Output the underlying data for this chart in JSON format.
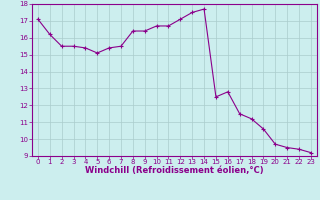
{
  "x": [
    0,
    1,
    2,
    3,
    4,
    5,
    6,
    7,
    8,
    9,
    10,
    11,
    12,
    13,
    14,
    15,
    16,
    17,
    18,
    19,
    20,
    21,
    22,
    23
  ],
  "y": [
    17.1,
    16.2,
    15.5,
    15.5,
    15.4,
    15.1,
    15.4,
    15.5,
    16.4,
    16.4,
    16.7,
    16.7,
    17.1,
    17.5,
    17.7,
    12.5,
    12.8,
    11.5,
    11.2,
    10.6,
    9.7,
    9.5,
    9.4,
    9.2
  ],
  "line_color": "#8B008B",
  "marker": "+",
  "bg_color": "#cceeee",
  "grid_color": "#aacccc",
  "xlabel": "Windchill (Refroidissement éolien,°C)",
  "xlabel_color": "#8B008B",
  "tick_color": "#8B008B",
  "spine_color": "#8B008B",
  "ylim": [
    9,
    18
  ],
  "xlim": [
    -0.5,
    23.5
  ],
  "yticks": [
    9,
    10,
    11,
    12,
    13,
    14,
    15,
    16,
    17,
    18
  ],
  "xticks": [
    0,
    1,
    2,
    3,
    4,
    5,
    6,
    7,
    8,
    9,
    10,
    11,
    12,
    13,
    14,
    15,
    16,
    17,
    18,
    19,
    20,
    21,
    22,
    23
  ],
  "xtick_labels": [
    "0",
    "1",
    "2",
    "3",
    "4",
    "5",
    "6",
    "7",
    "8",
    "9",
    "10",
    "11",
    "12",
    "13",
    "14",
    "15",
    "16",
    "17",
    "18",
    "19",
    "20",
    "21",
    "22",
    "23"
  ],
  "tick_fontsize": 5.0,
  "xlabel_fontsize": 6.0,
  "linewidth": 0.8,
  "markersize": 3.0
}
